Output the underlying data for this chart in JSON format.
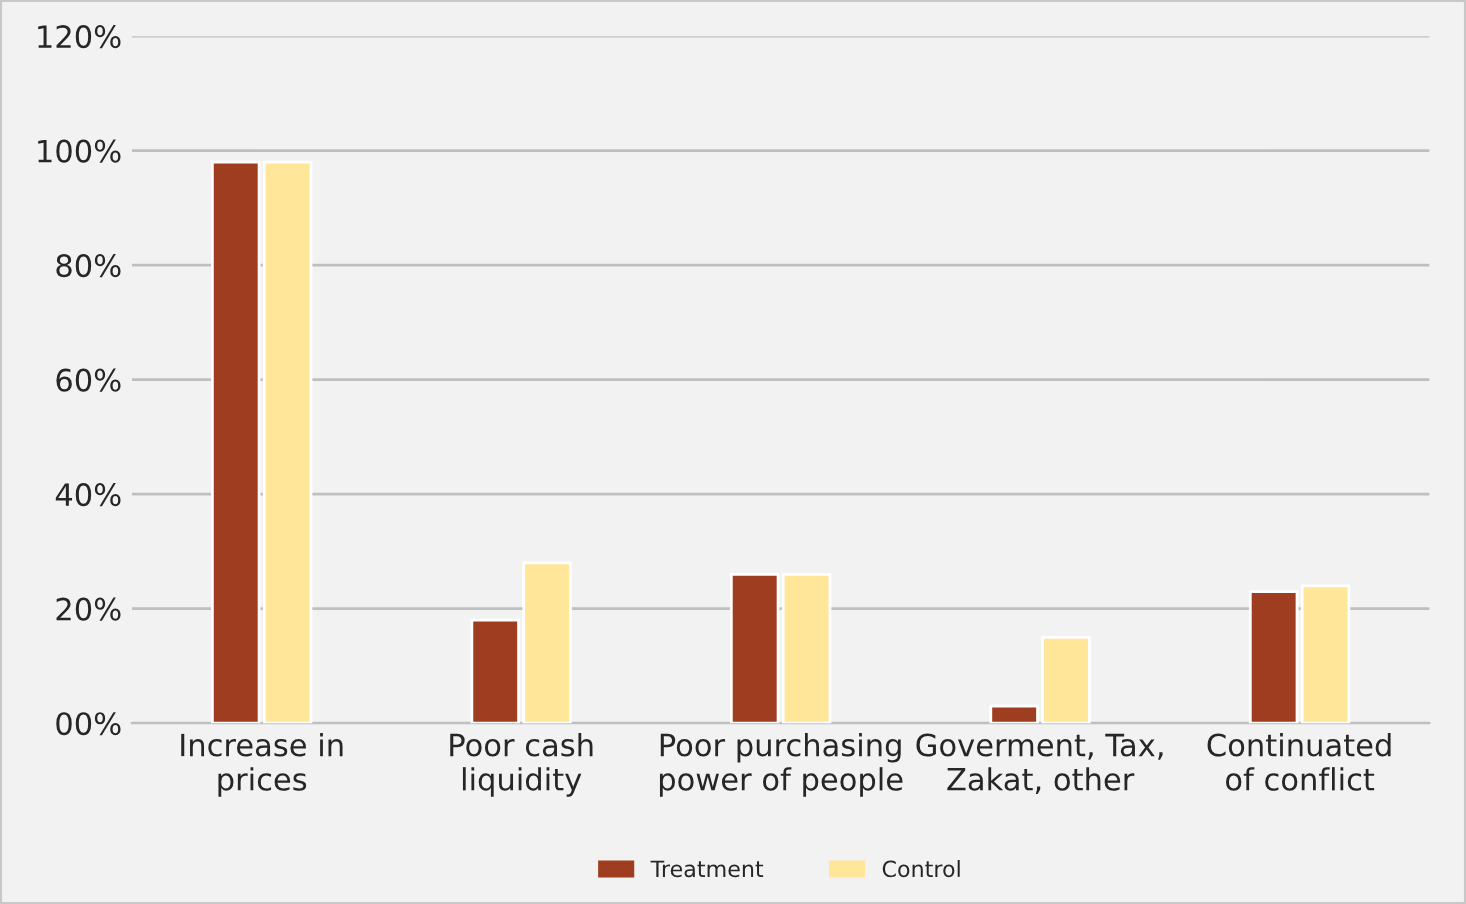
{
  "chart_data": {
    "type": "bar",
    "categories": [
      "Increase in\nprices",
      "Poor cash\nliquidity",
      "Poor purchasing\npower of people",
      "Goverment, Tax,\nZakat, other",
      "Continuated\nof conflict"
    ],
    "series": [
      {
        "name": "Treatment",
        "color": "#9e3d1f",
        "values": [
          98,
          18,
          26,
          3,
          23
        ]
      },
      {
        "name": "Control",
        "color": "#ffe699",
        "values": [
          98,
          28,
          26,
          15,
          24
        ]
      }
    ],
    "ylim": [
      0,
      120
    ],
    "yticks": [
      {
        "value": 0,
        "label": "00%"
      },
      {
        "value": 20,
        "label": "20%"
      },
      {
        "value": 40,
        "label": "40%"
      },
      {
        "value": 60,
        "label": "60%"
      },
      {
        "value": 80,
        "label": "80%"
      },
      {
        "value": 100,
        "label": "100%"
      },
      {
        "value": 120,
        "label": "120%"
      }
    ],
    "grid": "y",
    "legend": "bottom"
  }
}
